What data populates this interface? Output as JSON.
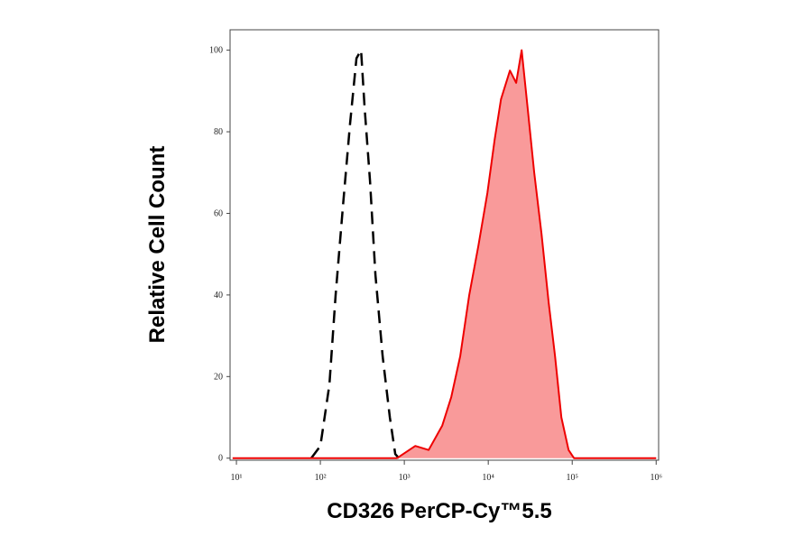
{
  "chart_data": {
    "type": "histogram-overlay",
    "x_label": "CD326 PerCP-Cy™5.5",
    "y_label": "Relative Cell Count",
    "x_log": true,
    "xlim": [
      8.4,
      1070000
    ],
    "xticks": [
      {
        "value": 10,
        "label": "10¹"
      },
      {
        "value": 100,
        "label": "10²"
      },
      {
        "value": 1000,
        "label": "10³"
      },
      {
        "value": 10000,
        "label": "10⁴"
      },
      {
        "value": 100000,
        "label": "10⁵"
      },
      {
        "value": 1000000,
        "label": "10⁶"
      }
    ],
    "ylim": [
      -0.5,
      105
    ],
    "yticks": [
      0,
      20,
      40,
      60,
      80,
      100
    ],
    "series": [
      {
        "color": "#000000",
        "dashed": true,
        "filled": false,
        "x": [
          78,
          100,
          128,
          152,
          186,
          226,
          269,
          305,
          336,
          390,
          453,
          552,
          673,
          780,
          861
        ],
        "values": [
          0,
          3,
          18,
          40,
          62,
          82,
          98,
          100,
          86,
          68,
          45,
          25,
          10,
          1,
          0
        ]
      },
      {
        "color": "#ee0000",
        "fill_color": "#f99a9a",
        "dashed": false,
        "filled": true,
        "x": [
          9,
          820,
          1350,
          1950,
          2830,
          3630,
          4640,
          5940,
          7620,
          9750,
          11900,
          14200,
          18100,
          21500,
          25000,
          29700,
          35300,
          43100,
          52500,
          62500,
          74300,
          90600,
          105000,
          1000000
        ],
        "values": [
          0,
          0,
          3,
          2,
          8,
          15,
          25,
          40,
          52,
          65,
          78,
          88,
          95,
          92,
          100,
          85,
          70,
          55,
          38,
          25,
          10,
          2,
          0,
          0
        ]
      }
    ]
  }
}
